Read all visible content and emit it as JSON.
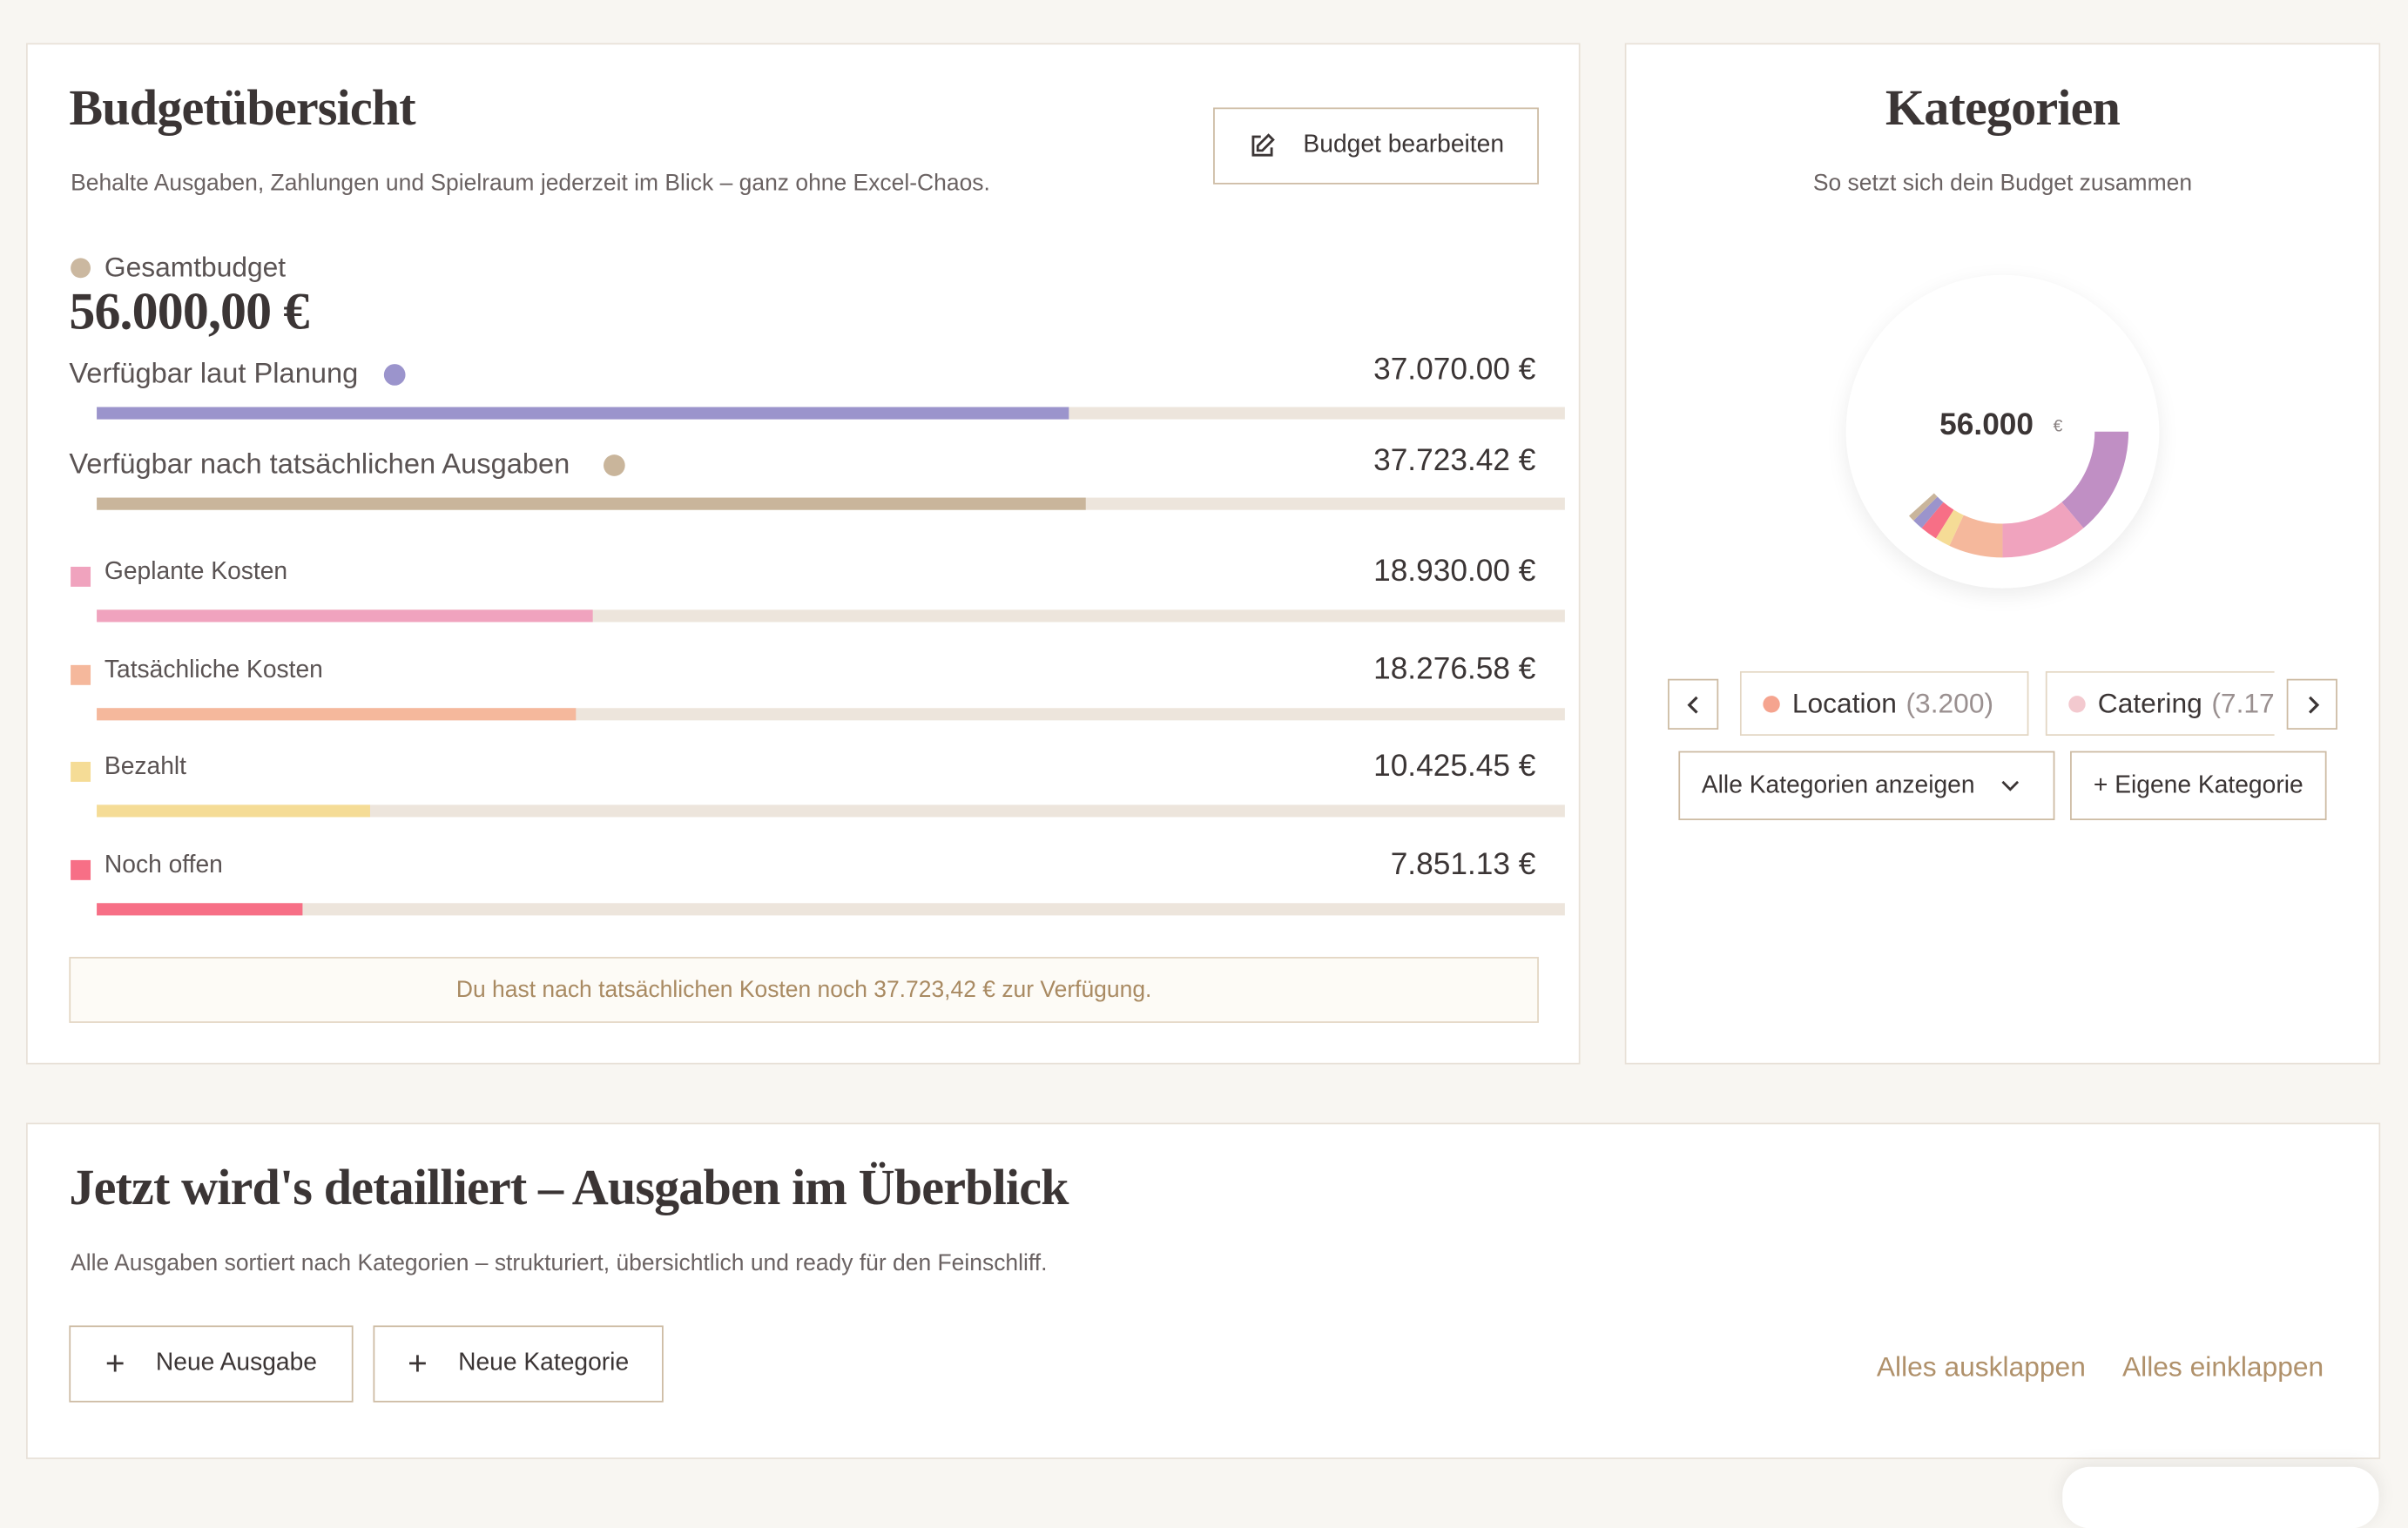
{
  "budget": {
    "title": "Budgetübersicht",
    "subtitle": "Behalte Ausgaben, Zahlungen und Spielraum jederzeit im Blick – ganz ohne Excel-Chaos.",
    "edit_button": "Budget bearbeiten",
    "total_name": "Gesamtbudget",
    "total": 56000,
    "total_label": "56.000,00 €",
    "availability": [
      {
        "label": "Verfügbar laut Planung",
        "value": 37070.0,
        "value_label": "37.070.00 €",
        "color": "#9b94cc"
      },
      {
        "label": "Verfügbar nach tatsächlichen Ausgaben",
        "value": 37723.42,
        "value_label": "37.723.42 €",
        "color": "#c9b59b"
      }
    ],
    "costs": [
      {
        "label": "Geplante Kosten",
        "value": 18930.0,
        "value_label": "18.930.00 €",
        "color": "#f0a3be"
      },
      {
        "label": "Tatsächliche Kosten",
        "value": 18276.58,
        "value_label": "18.276.58 €",
        "color": "#f5b89c"
      },
      {
        "label": "Bezahlt",
        "value": 10425.45,
        "value_label": "10.425.45 €",
        "color": "#f5dc96"
      },
      {
        "label": "Noch offen",
        "value": 7851.13,
        "value_label": "7.851.13 €",
        "color": "#f76f86"
      }
    ],
    "notice": "Du hast nach tatsächlichen Kosten noch 37.723,42 € zur Verfügung."
  },
  "categories": {
    "title": "Kategorien",
    "subtitle": "So setzt sich dein Budget zusammen",
    "center_value": "56.000",
    "center_unit": "€",
    "chips": [
      {
        "name": "Location",
        "count": "(3.200)",
        "color": "#f5a48f"
      },
      {
        "name": "Catering",
        "count": "(7.17",
        "color": "#f3c9cf"
      }
    ],
    "select": "Alle Kategorien anzeigen",
    "add_button": "+ Eigene Kategorie"
  },
  "expenses": {
    "title": "Jetzt wird's detailliert – Ausgaben im Überblick",
    "subtitle": "Alle Ausgaben sortiert nach Kategorien – strukturiert, übersichtlich und ready für den Feinschliff.",
    "buttons": [
      "Neue Ausgabe",
      "Neue Kategorie"
    ],
    "links": [
      "Alles ausklappen",
      "Alles einklappen"
    ]
  }
}
